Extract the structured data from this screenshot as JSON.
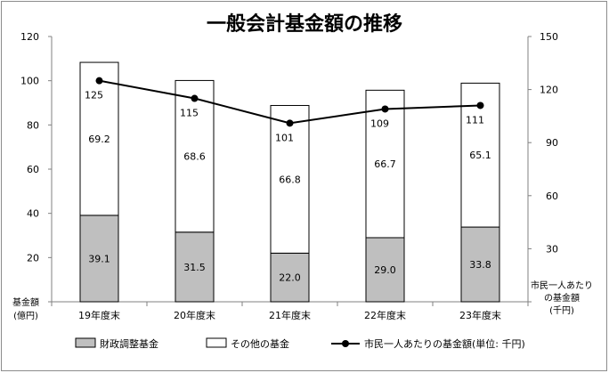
{
  "chart_data": {
    "type": "bar",
    "title": "一般会計基金額の推移",
    "categories": [
      "19年度末",
      "20年度末",
      "21年度末",
      "22年度末",
      "23年度末"
    ],
    "series": [
      {
        "name": "財政調整基金",
        "kind": "bar",
        "color": "#bfbfbf",
        "values": [
          39.1,
          31.5,
          22.0,
          29.0,
          33.8
        ]
      },
      {
        "name": "その他の基金",
        "kind": "bar",
        "color": "#ffffff",
        "values": [
          69.2,
          68.6,
          66.8,
          66.7,
          65.1
        ]
      },
      {
        "name": "市民一人あたりの基金額(単位: 千円)",
        "kind": "line",
        "axis": "right",
        "color": "#000000",
        "values": [
          125,
          115,
          101,
          109,
          111
        ]
      }
    ],
    "y_left": {
      "label_lines": [
        "基金額",
        "(億円)"
      ],
      "range": [
        0,
        120
      ],
      "ticks": [
        0,
        20,
        40,
        60,
        80,
        100,
        120
      ],
      "tick_labels": [
        "",
        "20",
        "40",
        "60",
        "80",
        "100",
        "120"
      ]
    },
    "y_right": {
      "label_lines": [
        "市民一人あたり",
        "の基金額",
        "(千円)"
      ],
      "range": [
        0,
        150
      ],
      "ticks": [
        0,
        30,
        60,
        90,
        120,
        150
      ],
      "tick_labels": [
        "",
        "30",
        "60",
        "90",
        "120",
        "150"
      ]
    },
    "grid": false,
    "legend_position": "bottom",
    "data_label_formats": {
      "bars": "0.0",
      "line": "0"
    }
  }
}
